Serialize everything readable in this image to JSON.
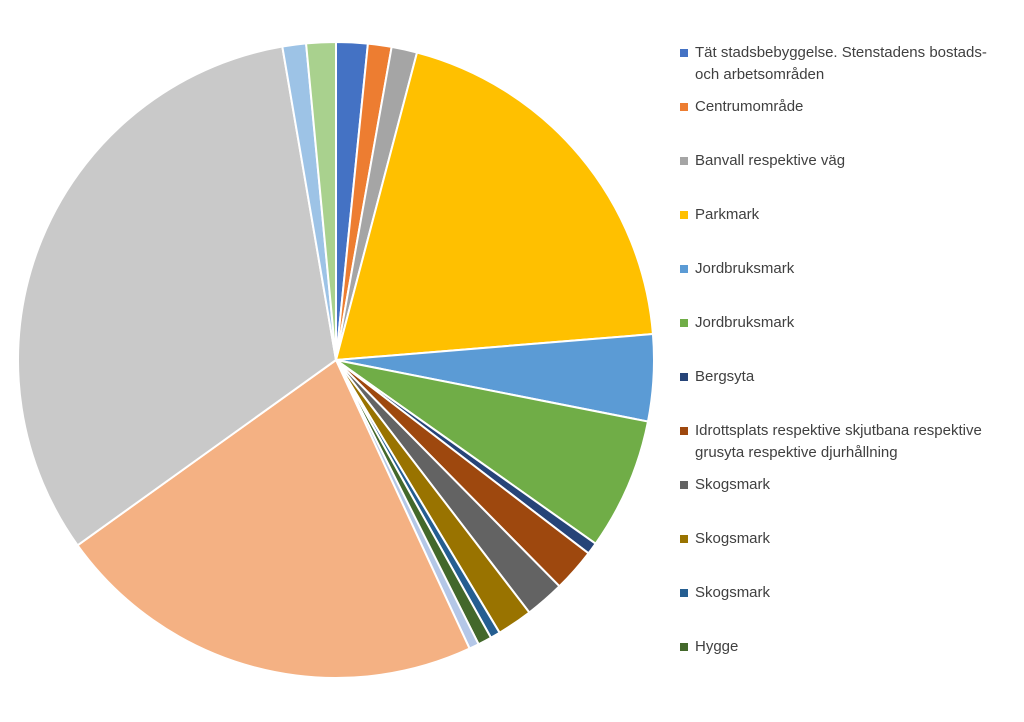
{
  "chart_data": {
    "type": "pie",
    "categories": [
      "Tät stadsbebyggelse. Stenstadens bostads- och arbetsområden",
      "Centrumområde",
      "Banvall respektive väg",
      "Parkmark",
      "Jordbruksmark",
      "Jordbruksmark",
      "Bergsyta",
      "Idrottsplats respektive skjutbana respektive grusyta respektive djurhållning",
      "Skogsmark",
      "Skogsmark",
      "Skogsmark",
      "Hygge",
      null,
      null,
      null,
      null,
      null
    ],
    "values": [
      1.6,
      1.2,
      1.3,
      19.6,
      4.4,
      6.7,
      0.6,
      2.2,
      2.0,
      1.8,
      0.5,
      0.7,
      0.5,
      22.0,
      32.2,
      1.2,
      1.5
    ],
    "colors": [
      "#4472c4",
      "#ed7d31",
      "#a5a5a5",
      "#ffc000",
      "#5b9bd5",
      "#70ad47",
      "#264478",
      "#9e480e",
      "#636363",
      "#997300",
      "#255e91",
      "#43682b",
      "#b4c7e7",
      "#f4b183",
      "#c9c9c9",
      "#9dc3e6",
      "#a9d18e"
    ]
  }
}
